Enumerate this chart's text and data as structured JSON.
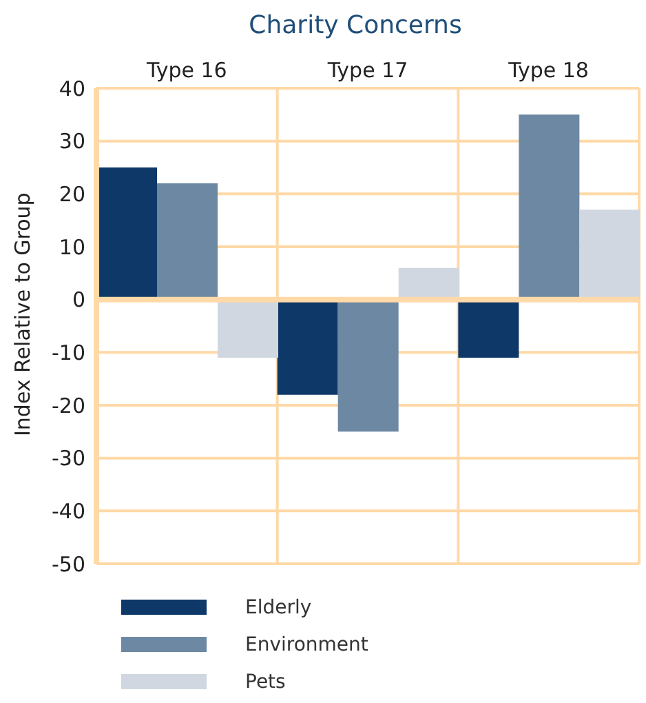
{
  "chart_data": {
    "type": "bar",
    "title": "Charity Concerns",
    "ylabel": "Index Relative to Group",
    "categories": [
      "Type 16",
      "Type 17",
      "Type 18"
    ],
    "series": [
      {
        "name": "Elderly",
        "color": "#0d3868",
        "values": [
          25,
          -18,
          -11
        ]
      },
      {
        "name": "Environment",
        "color": "#6d88a3",
        "values": [
          22,
          -25,
          35
        ]
      },
      {
        "name": "Pets",
        "color": "#d0d7e0",
        "values": [
          -11,
          6,
          17
        ]
      }
    ],
    "ylim": [
      -50,
      40
    ],
    "yticks": [
      -50,
      -40,
      -30,
      -20,
      -10,
      0,
      10,
      20,
      30,
      40
    ],
    "grid": true,
    "legend": "bottom",
    "ref_lines": [
      {
        "axis": "y",
        "value": 0,
        "color": "#ffd9a8"
      }
    ]
  }
}
